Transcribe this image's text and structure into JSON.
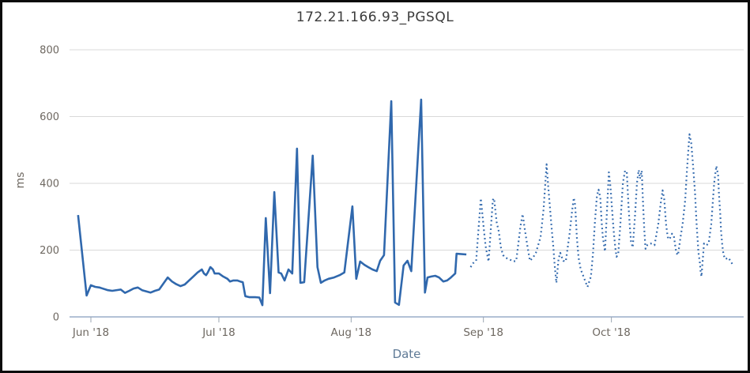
{
  "window": {
    "background": "#ffffff",
    "border_color": "#0b0b0b"
  },
  "chart_data": {
    "type": "line",
    "title": "172.21.166.93_PGSQL",
    "xlabel": "Date",
    "ylabel": "ms",
    "grid": true,
    "legend": "none",
    "ylim": [
      0,
      800
    ],
    "yticks": [
      0,
      200,
      400,
      600,
      800
    ],
    "x_unit": "days, day 0 = 2018-05-29",
    "xlim": [
      -2,
      156
    ],
    "xticks": [
      {
        "d": 3,
        "label": "Jun '18"
      },
      {
        "d": 33,
        "label": "Jul '18"
      },
      {
        "d": 64,
        "label": "Aug '18"
      },
      {
        "d": 95,
        "label": "Sep '18"
      },
      {
        "d": 125,
        "label": "Oct '18"
      }
    ],
    "colors": {
      "line": "#3068ad",
      "gridline": "#d9d9d9",
      "axis_line": "#b3c1d6",
      "tick_mark": "#9aa5b1",
      "tick_label": "#6e6861",
      "title": "#3b3b3b",
      "axis_title": "#5f7a96"
    },
    "series": [
      {
        "name": "solid",
        "style": "solid",
        "color": "#3068ad",
        "points": [
          [
            0,
            305
          ],
          [
            2,
            64
          ],
          [
            3,
            95
          ],
          [
            4,
            90
          ],
          [
            5,
            88
          ],
          [
            7,
            80
          ],
          [
            8,
            78
          ],
          [
            10,
            82
          ],
          [
            11,
            72
          ],
          [
            12,
            78
          ],
          [
            13,
            85
          ],
          [
            14,
            88
          ],
          [
            15,
            80
          ],
          [
            17,
            73
          ],
          [
            18,
            78
          ],
          [
            19,
            82
          ],
          [
            20,
            100
          ],
          [
            21,
            118
          ],
          [
            22,
            106
          ],
          [
            23,
            98
          ],
          [
            24,
            92
          ],
          [
            25,
            97
          ],
          [
            26,
            109
          ],
          [
            27,
            121
          ],
          [
            28,
            133
          ],
          [
            29,
            142
          ],
          [
            29.5,
            130
          ],
          [
            30,
            125
          ],
          [
            30.4,
            133
          ],
          [
            31,
            149
          ],
          [
            31.6,
            142
          ],
          [
            32,
            130
          ],
          [
            33,
            130
          ],
          [
            34,
            121
          ],
          [
            35,
            114
          ],
          [
            35.6,
            106
          ],
          [
            36.4,
            109
          ],
          [
            37.3,
            109
          ],
          [
            38,
            106
          ],
          [
            38.6,
            104
          ],
          [
            39.2,
            62
          ],
          [
            40.2,
            59
          ],
          [
            41.5,
            59
          ],
          [
            42.5,
            58
          ],
          [
            43.2,
            35
          ],
          [
            44,
            296
          ],
          [
            45,
            71
          ],
          [
            46,
            374
          ],
          [
            47,
            133
          ],
          [
            47.6,
            130
          ],
          [
            48.4,
            109
          ],
          [
            49.3,
            142
          ],
          [
            50.2,
            130
          ],
          [
            51.3,
            504
          ],
          [
            52.1,
            102
          ],
          [
            53,
            104
          ],
          [
            55,
            483
          ],
          [
            56.1,
            149
          ],
          [
            56.9,
            102
          ],
          [
            57.8,
            109
          ],
          [
            58.7,
            114
          ],
          [
            60,
            118
          ],
          [
            61.3,
            125
          ],
          [
            62.4,
            133
          ],
          [
            64.3,
            331
          ],
          [
            65.2,
            114
          ],
          [
            66.1,
            166
          ],
          [
            67.1,
            156
          ],
          [
            68,
            149
          ],
          [
            69,
            142
          ],
          [
            70,
            137
          ],
          [
            70.8,
            168
          ],
          [
            71.7,
            185
          ],
          [
            73.4,
            646
          ],
          [
            74.3,
            43
          ],
          [
            75.2,
            36
          ],
          [
            76.3,
            154
          ],
          [
            77.2,
            168
          ],
          [
            78.1,
            137
          ],
          [
            80.4,
            651
          ],
          [
            81.3,
            73
          ],
          [
            81.9,
            118
          ],
          [
            82.8,
            121
          ],
          [
            83.7,
            123
          ],
          [
            84.6,
            118
          ],
          [
            85.6,
            106
          ],
          [
            86.5,
            109
          ],
          [
            87.4,
            118
          ],
          [
            88.4,
            130
          ],
          [
            88.7,
            189
          ],
          [
            91,
            187
          ]
        ]
      },
      {
        "name": "dotted",
        "style": "dotted",
        "color": "#3068ad",
        "points": [
          [
            92,
            149
          ],
          [
            92.6,
            161
          ],
          [
            93.3,
            168
          ],
          [
            94.4,
            355
          ],
          [
            95.1,
            263
          ],
          [
            95.5,
            213
          ],
          [
            95.8,
            192
          ],
          [
            96.2,
            166
          ],
          [
            97.2,
            350
          ],
          [
            97.5,
            355
          ],
          [
            98.1,
            284
          ],
          [
            98.6,
            256
          ],
          [
            99.1,
            208
          ],
          [
            99.6,
            185
          ],
          [
            100.2,
            177
          ],
          [
            101,
            173
          ],
          [
            102,
            166
          ],
          [
            102.7,
            168
          ],
          [
            103.7,
            272
          ],
          [
            104.2,
            308
          ],
          [
            104.7,
            263
          ],
          [
            105.3,
            213
          ],
          [
            105.9,
            168
          ],
          [
            106.6,
            177
          ],
          [
            107.3,
            192
          ],
          [
            108.4,
            239
          ],
          [
            109.1,
            322
          ],
          [
            109.8,
            457
          ],
          [
            110.2,
            390
          ],
          [
            110.6,
            327
          ],
          [
            111,
            263
          ],
          [
            111.4,
            208
          ],
          [
            111.7,
            156
          ],
          [
            112.1,
            102
          ],
          [
            112.6,
            173
          ],
          [
            113,
            192
          ],
          [
            113.7,
            168
          ],
          [
            114.3,
            166
          ],
          [
            115.2,
            249
          ],
          [
            115.8,
            320
          ],
          [
            116.2,
            357
          ],
          [
            116.5,
            334
          ],
          [
            116.9,
            239
          ],
          [
            117.3,
            177
          ],
          [
            117.8,
            142
          ],
          [
            118.2,
            130
          ],
          [
            118.8,
            109
          ],
          [
            119.4,
            90
          ],
          [
            120.2,
            121
          ],
          [
            120.7,
            192
          ],
          [
            121.1,
            279
          ],
          [
            121.6,
            362
          ],
          [
            122,
            381
          ],
          [
            122.4,
            357
          ],
          [
            122.7,
            286
          ],
          [
            123,
            239
          ],
          [
            123.5,
            196
          ],
          [
            124.4,
            433
          ],
          [
            124.8,
            386
          ],
          [
            125.1,
            331
          ],
          [
            125.5,
            263
          ],
          [
            125.9,
            208
          ],
          [
            126.2,
            180
          ],
          [
            126.6,
            189
          ],
          [
            127.1,
            279
          ],
          [
            127.7,
            402
          ],
          [
            128.2,
            438
          ],
          [
            128.6,
            435
          ],
          [
            129,
            334
          ],
          [
            129.3,
            272
          ],
          [
            129.6,
            225
          ],
          [
            130,
            208
          ],
          [
            130.5,
            296
          ],
          [
            131,
            402
          ],
          [
            131.4,
            440
          ],
          [
            131.7,
            414
          ],
          [
            132.1,
            438
          ],
          [
            132.4,
            343
          ],
          [
            132.7,
            263
          ],
          [
            133,
            204
          ],
          [
            133.4,
            215
          ],
          [
            134.2,
            220
          ],
          [
            135.1,
            215
          ],
          [
            136,
            279
          ],
          [
            136.5,
            334
          ],
          [
            137,
            379
          ],
          [
            137.4,
            350
          ],
          [
            137.8,
            279
          ],
          [
            138.2,
            239
          ],
          [
            138.6,
            232
          ],
          [
            139.2,
            249
          ],
          [
            139.6,
            244
          ],
          [
            140.2,
            192
          ],
          [
            140.6,
            185
          ],
          [
            141.2,
            239
          ],
          [
            141.7,
            279
          ],
          [
            142.3,
            350
          ],
          [
            142.7,
            438
          ],
          [
            143.3,
            547
          ],
          [
            143.7,
            521
          ],
          [
            144,
            476
          ],
          [
            144.3,
            426
          ],
          [
            144.6,
            369
          ],
          [
            144.8,
            320
          ],
          [
            145,
            272
          ],
          [
            145.2,
            232
          ],
          [
            145.4,
            192
          ],
          [
            145.7,
            166
          ],
          [
            145.9,
            137
          ],
          [
            146.1,
            121
          ],
          [
            146.7,
            220
          ],
          [
            147.3,
            215
          ],
          [
            147.8,
            220
          ],
          [
            148.4,
            279
          ],
          [
            148.8,
            350
          ],
          [
            149.1,
            402
          ],
          [
            149.6,
            452
          ],
          [
            150,
            426
          ],
          [
            150.2,
            369
          ],
          [
            150.5,
            310
          ],
          [
            150.7,
            256
          ],
          [
            151,
            213
          ],
          [
            151.3,
            185
          ],
          [
            151.7,
            173
          ],
          [
            152.4,
            177
          ],
          [
            152.9,
            168
          ],
          [
            153.5,
            154
          ]
        ]
      }
    ]
  }
}
